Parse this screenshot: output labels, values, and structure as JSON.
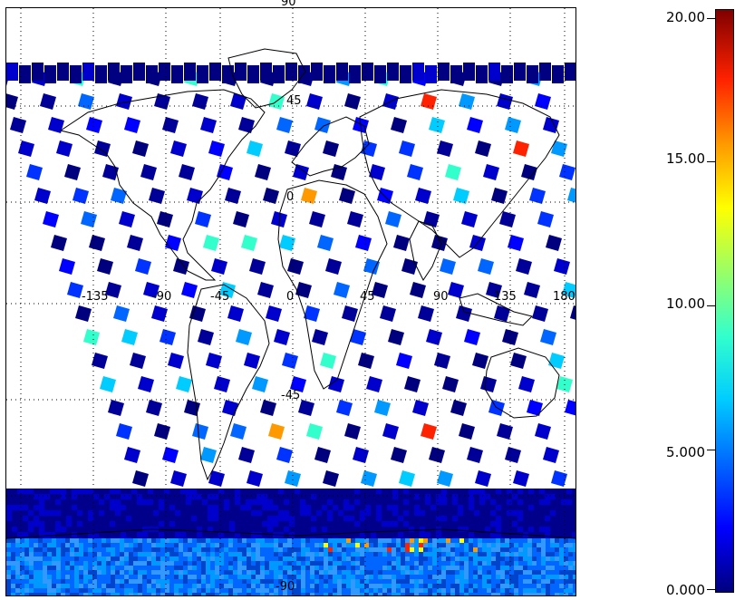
{
  "map": {
    "lon_labels": [
      "-135",
      "-90",
      "-45",
      "0",
      "45",
      "90",
      "135",
      "180"
    ],
    "lat_labels": [
      "90",
      "45",
      "0",
      "-45",
      "-90"
    ],
    "gridline_style": "dotted",
    "grid": true,
    "projection": "cylindrical"
  },
  "colorbar": {
    "ticks": [
      "20.00",
      "15.00",
      "10.00",
      "5.000",
      "0.000"
    ],
    "tick_values": [
      20,
      15,
      10,
      5,
      0
    ],
    "min": 0,
    "max": 20,
    "colormap": "rainbow (dark blue to dark red)",
    "colors": [
      "#00007f",
      "#0000ff",
      "#00ccff",
      "#99ff66",
      "#ffff00",
      "#ff9900",
      "#ff2200",
      "#800000"
    ]
  }
}
